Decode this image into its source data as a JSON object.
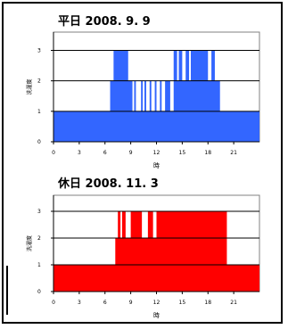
{
  "chart_data": [
    {
      "type": "area",
      "title": "平日 2008. 9. 9",
      "xlabel": "時",
      "ylabel": "洗濯度",
      "xlim": [
        0,
        24
      ],
      "ylim": [
        0,
        3
      ],
      "xticks": [
        0,
        3,
        6,
        9,
        12,
        15,
        18,
        21
      ],
      "yticks": [
        0,
        1,
        2,
        3
      ],
      "fill_color": "#3366FF",
      "grid": true,
      "step_series": [
        [
          0,
          1
        ],
        [
          6.6,
          2
        ],
        [
          7.0,
          3
        ],
        [
          8.7,
          2
        ],
        [
          9.2,
          1
        ],
        [
          9.4,
          2
        ],
        [
          9.6,
          1
        ],
        [
          10.2,
          2
        ],
        [
          10.4,
          1
        ],
        [
          10.6,
          2
        ],
        [
          10.8,
          1
        ],
        [
          11.2,
          2
        ],
        [
          11.4,
          1
        ],
        [
          11.8,
          2
        ],
        [
          12.0,
          1
        ],
        [
          12.4,
          2
        ],
        [
          12.6,
          1
        ],
        [
          13.0,
          2
        ],
        [
          13.6,
          1
        ],
        [
          14.0,
          3
        ],
        [
          14.4,
          2
        ],
        [
          14.6,
          3
        ],
        [
          15.0,
          2
        ],
        [
          15.4,
          3
        ],
        [
          15.8,
          2
        ],
        [
          16.0,
          3
        ],
        [
          18.0,
          2
        ],
        [
          18.4,
          3
        ],
        [
          18.8,
          2
        ],
        [
          19.4,
          1
        ],
        [
          24,
          1
        ]
      ]
    },
    {
      "type": "area",
      "title": "休日 2008. 11. 3",
      "xlabel": "時",
      "ylabel": "洗濯度",
      "xlim": [
        0,
        24
      ],
      "ylim": [
        0,
        3
      ],
      "xticks": [
        0,
        3,
        6,
        9,
        12,
        15,
        18,
        21
      ],
      "yticks": [
        0,
        1,
        2,
        3
      ],
      "fill_color": "#FF0000",
      "grid": true,
      "step_series": [
        [
          0,
          1
        ],
        [
          7.2,
          2
        ],
        [
          7.5,
          3
        ],
        [
          7.8,
          2
        ],
        [
          8.0,
          3
        ],
        [
          8.4,
          2
        ],
        [
          9.0,
          3
        ],
        [
          10.3,
          2
        ],
        [
          11.0,
          3
        ],
        [
          11.6,
          2
        ],
        [
          12.0,
          3
        ],
        [
          20.2,
          1
        ],
        [
          24,
          1
        ]
      ]
    }
  ]
}
